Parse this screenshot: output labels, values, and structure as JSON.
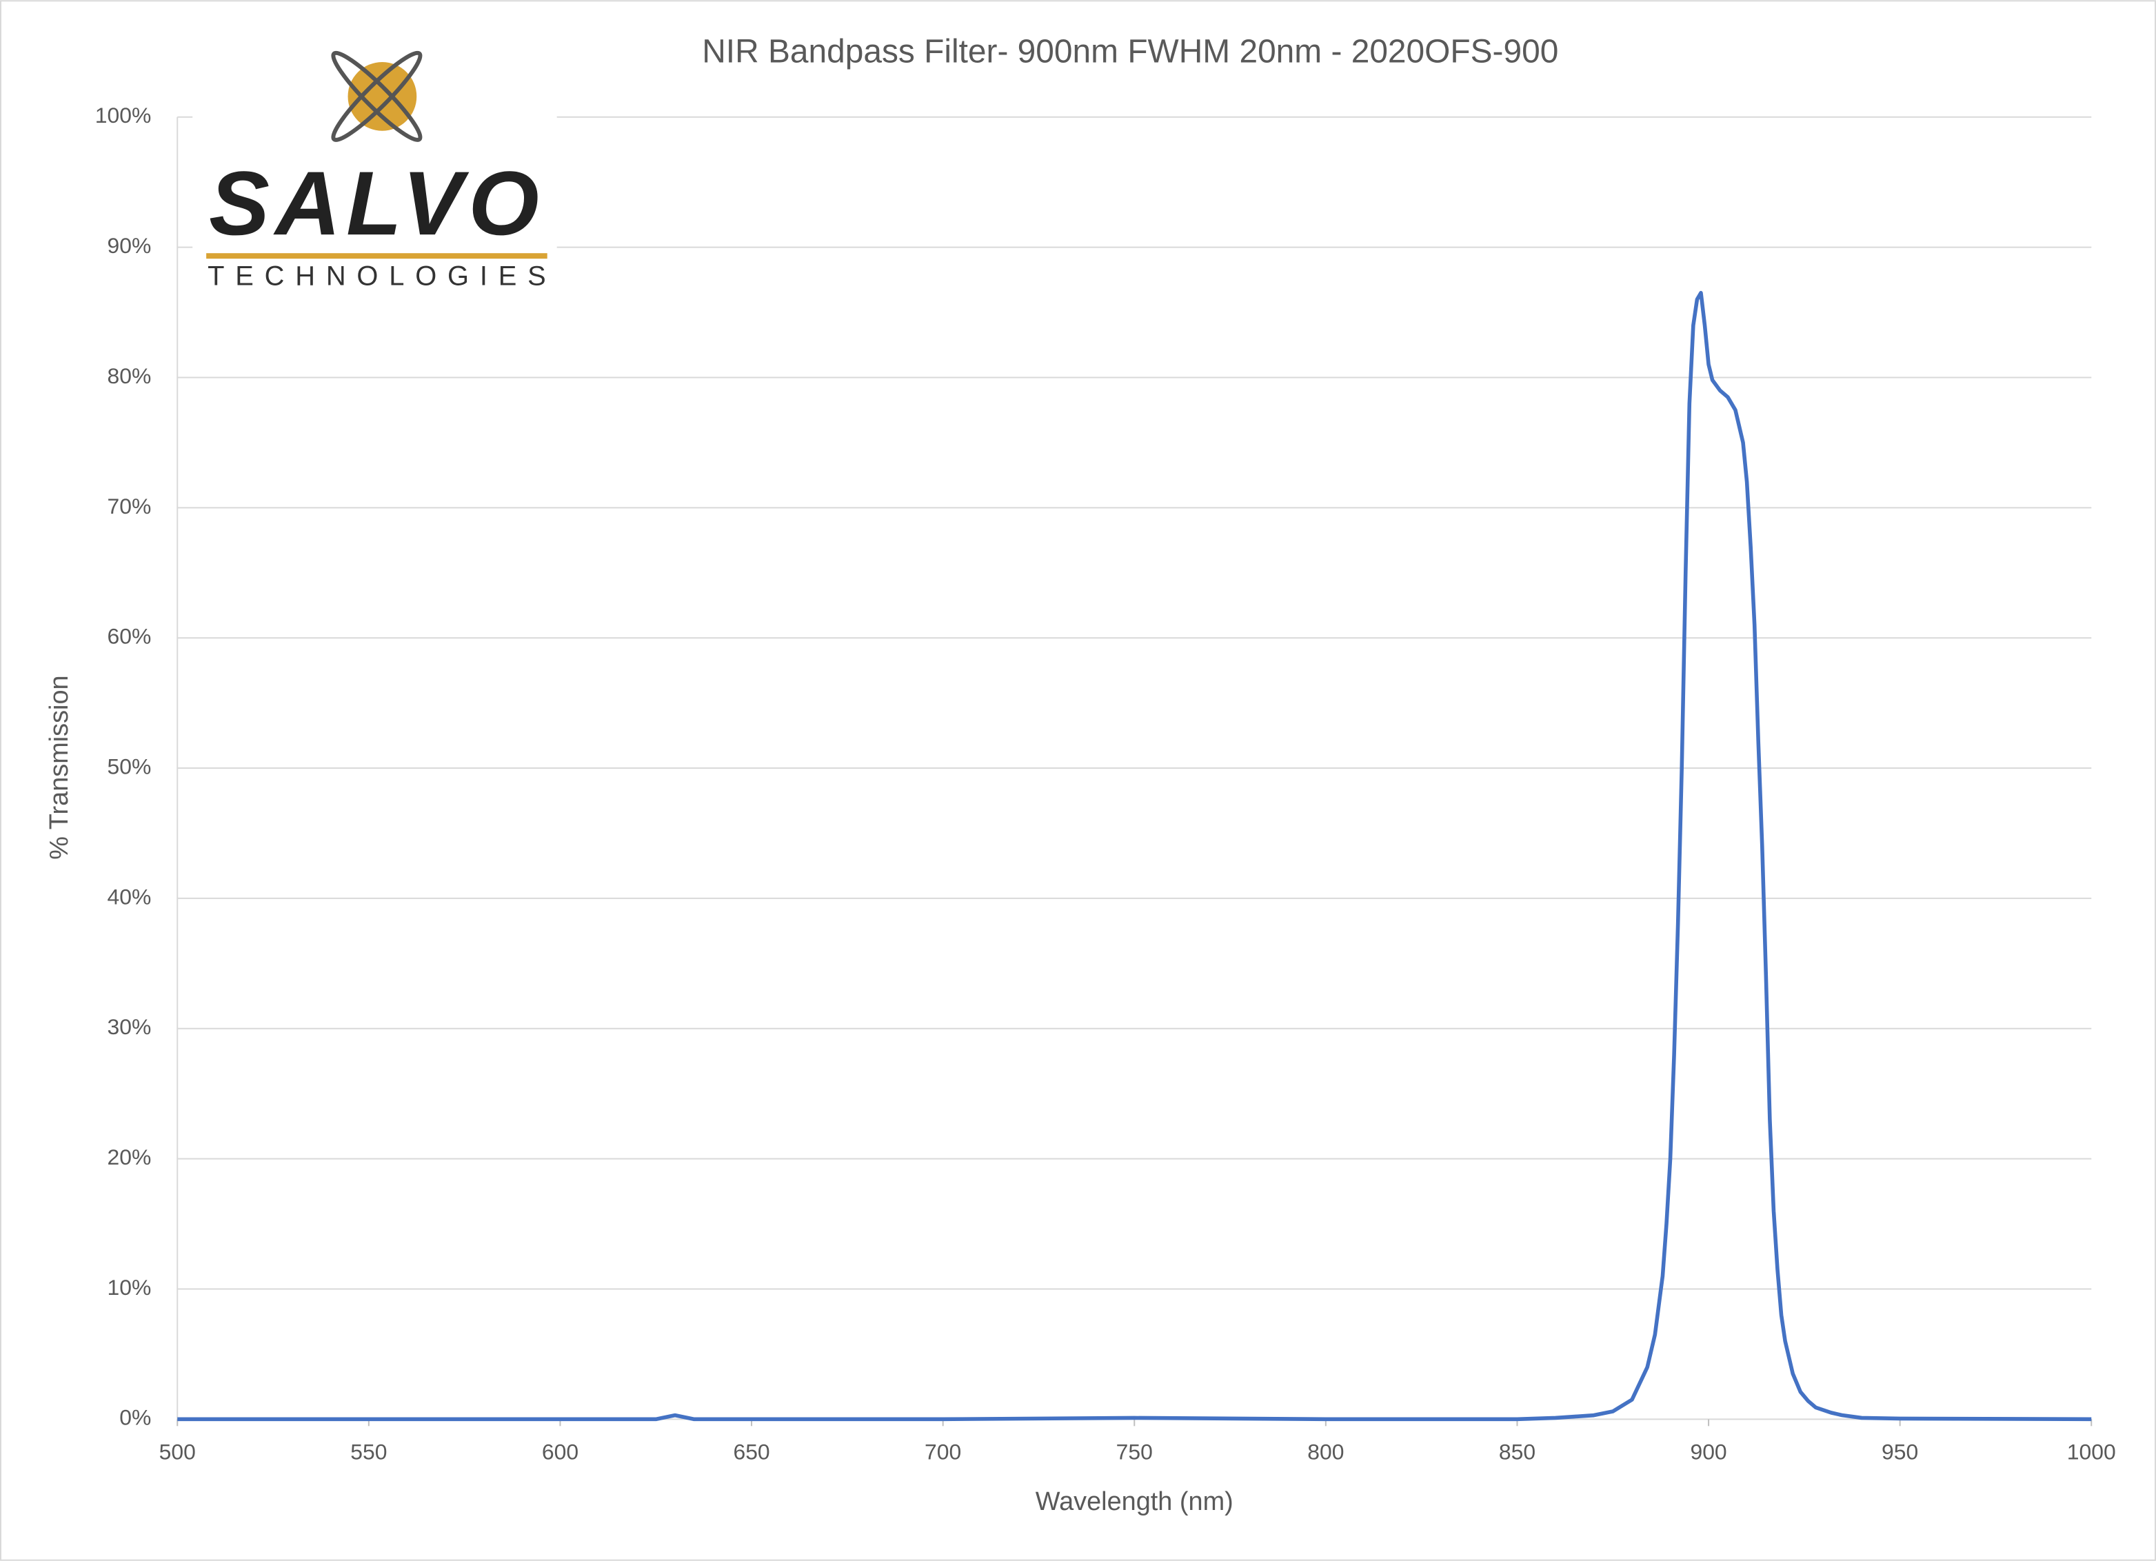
{
  "chart_data": {
    "type": "line",
    "title": "NIR Bandpass Filter- 900nm FWHM 20nm - 2020OFS-900",
    "xlabel": "Wavelength (nm)",
    "ylabel": "% Transmission",
    "logo": {
      "name": "SALVO",
      "tagline": "TECHNOLOGIES"
    },
    "x": [
      500,
      550,
      600,
      625,
      630,
      635,
      700,
      750,
      800,
      850,
      860,
      865,
      870,
      875,
      880,
      884,
      886,
      888,
      889,
      890,
      891,
      892,
      893,
      894,
      895,
      896,
      897,
      898,
      899,
      900,
      901,
      903,
      905,
      907,
      909,
      910,
      911,
      912,
      913,
      914,
      915,
      916,
      917,
      918,
      919,
      920,
      922,
      924,
      926,
      928,
      932,
      935,
      940,
      950,
      1000
    ],
    "values": [
      0,
      0,
      0,
      0,
      0.3,
      0,
      0,
      0.1,
      0,
      0,
      0.1,
      0.2,
      0.3,
      0.6,
      1.5,
      4,
      6.5,
      11,
      15,
      20,
      28,
      38,
      50,
      65,
      78,
      84,
      86,
      86.5,
      84,
      81,
      79.8,
      79,
      78.5,
      77.5,
      75,
      72,
      67,
      61,
      52,
      44,
      34,
      23,
      16,
      11.5,
      8,
      6,
      3.5,
      2.1,
      1.4,
      0.9,
      0.5,
      0.3,
      0.1,
      0.05,
      0
    ],
    "color": "#4472c4",
    "xlim": [
      500,
      1000
    ],
    "xticks": [
      500,
      550,
      600,
      650,
      700,
      750,
      800,
      850,
      900,
      950,
      1000
    ],
    "ylim": [
      0,
      100
    ],
    "yticks": [
      {
        "value": 0,
        "label": "0%"
      },
      {
        "value": 10,
        "label": "10%"
      },
      {
        "value": 20,
        "label": "20%"
      },
      {
        "value": 30,
        "label": "30%"
      },
      {
        "value": 40,
        "label": "40%"
      },
      {
        "value": 50,
        "label": "50%"
      },
      {
        "value": 60,
        "label": "60%"
      },
      {
        "value": 70,
        "label": "70%"
      },
      {
        "value": 80,
        "label": "80%"
      },
      {
        "value": 90,
        "label": "90%"
      },
      {
        "value": 100,
        "label": "100%"
      }
    ],
    "grid": true
  }
}
